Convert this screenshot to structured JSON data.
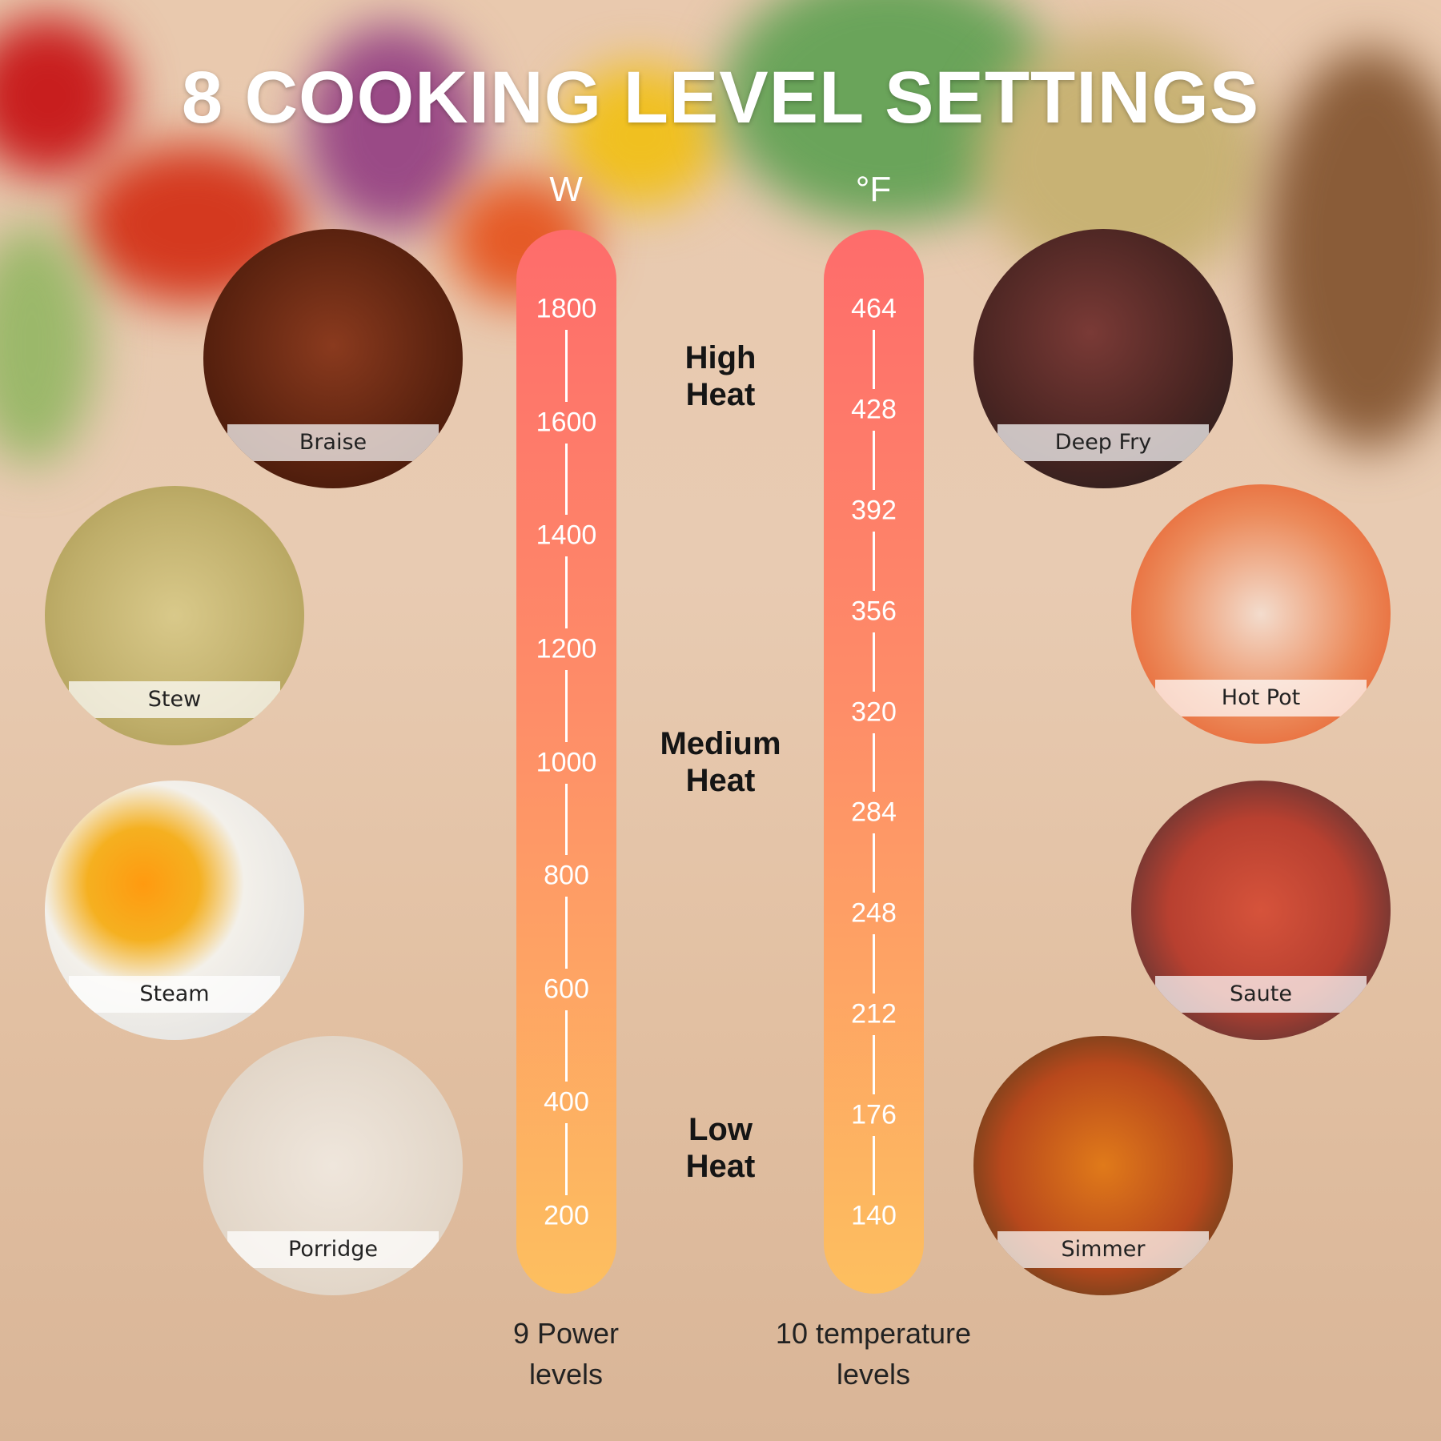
{
  "title": "8 COOKING LEVEL SETTINGS",
  "power": {
    "unit": "W",
    "ticks": [
      "1800",
      "1600",
      "1400",
      "1200",
      "1000",
      "800",
      "600",
      "400",
      "200"
    ],
    "footer_line1": "9 Power",
    "footer_line2": "levels"
  },
  "temperature": {
    "unit": "°F",
    "ticks": [
      "464",
      "428",
      "392",
      "356",
      "320",
      "284",
      "248",
      "212",
      "176",
      "140"
    ],
    "footer_line1": "10 temperature",
    "footer_line2": "levels"
  },
  "heat_levels": [
    {
      "line1": "High",
      "line2": "Heat"
    },
    {
      "line1": "Medium",
      "line2": "Heat"
    },
    {
      "line1": "Low",
      "line2": "Heat"
    }
  ],
  "modes": [
    "Braise",
    "Stew",
    "Steam",
    "Porridge",
    "Deep Fry",
    "Hot Pot",
    "Saute",
    "Simmer"
  ],
  "colors": {
    "bar_top": "#fe6c6b",
    "bar_bottom": "#fdbf5f",
    "title": "#ffffff"
  }
}
